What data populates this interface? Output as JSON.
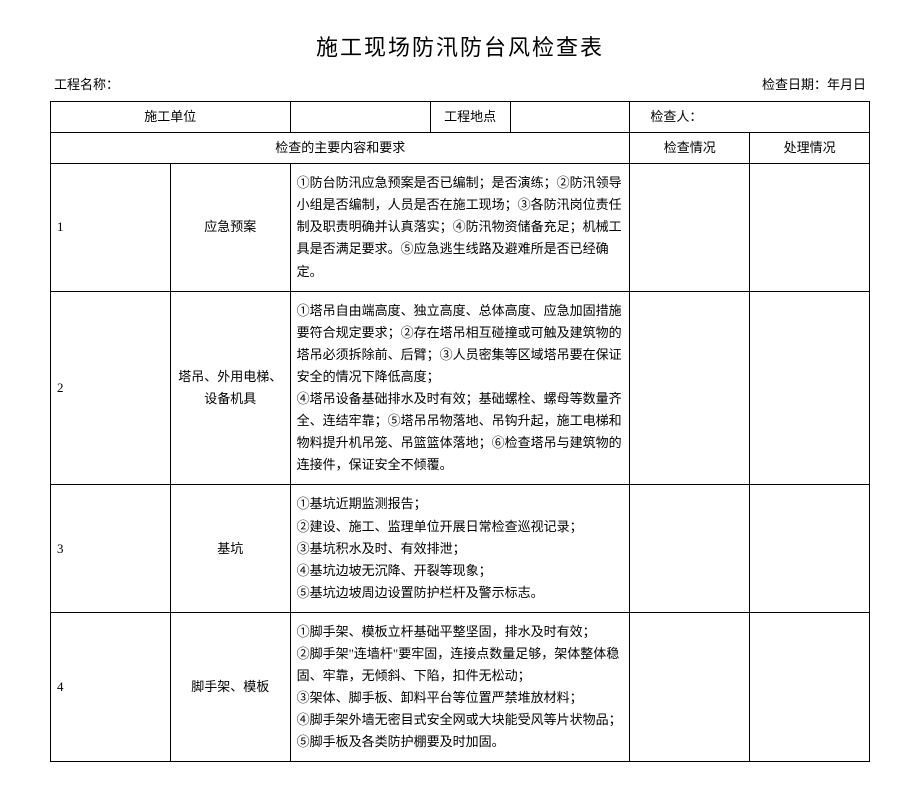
{
  "title": "施工现场防汛防台风检查表",
  "labels": {
    "project_name": "工程名称：",
    "check_date": "检查日期：年月日",
    "construction_unit": "施工单位",
    "project_location": "工程地点",
    "inspector": "检查人：",
    "main_content": "检查的主要内容和要求",
    "check_status": "检查情况",
    "process_status": "处理情况"
  },
  "rows": [
    {
      "num": "1",
      "category": "应急预案",
      "content": "①防台防汛应急预案是否已编制；是否演练；②防汛领导小组是否编制，人员是否在施工现场；③各防汛岗位责任制及职责明确并认真落实；④防汛物资储备充足；机械工具是否满足要求。⑤应急逃生线路及避难所是否已经确定。"
    },
    {
      "num": "2",
      "category": "塔吊、外用电梯、设备机具",
      "content": "①塔吊自由端高度、独立高度、总体高度、应急加固措施要符合规定要求；②存在塔吊相互碰撞或可触及建筑物的塔吊必须拆除前、后臂；③人员密集等区域塔吊要在保证安全的情况下降低高度；\n④塔吊设备基础排水及时有效；基础螺栓、螺母等数量齐全、连结牢靠；⑤塔吊吊物落地、吊钩升起，施工电梯和物料提升机吊笼、吊篮篮体落地；⑥检查塔吊与建筑物的连接件，保证安全不倾覆。"
    },
    {
      "num": "3",
      "category": "基坑",
      "content": "①基坑近期监测报告；\n②建设、施工、监理单位开展日常检查巡视记录；\n③基坑积水及时、有效排泄；\n④基坑边坡无沉降、开裂等现象；\n⑤基坑边坡周边设置防护栏杆及警示标志。"
    },
    {
      "num": "4",
      "category": "脚手架、模板",
      "content": "①脚手架、模板立杆基础平整坚固，排水及时有效；\n②脚手架\"连墙杆\"要牢固，连接点数量足够，架体整体稳固、牢靠，无倾斜、下陷，扣件无松动；\n③架体、脚手板、卸料平台等位置严禁堆放材料；\n④脚手架外墙无密目式安全网或大块能受风等片状物品；\n⑤脚手板及各类防护棚要及时加固。"
    }
  ],
  "style": {
    "border_color": "#000000",
    "background": "#ffffff",
    "title_fontsize": 22,
    "body_fontsize": 13
  }
}
